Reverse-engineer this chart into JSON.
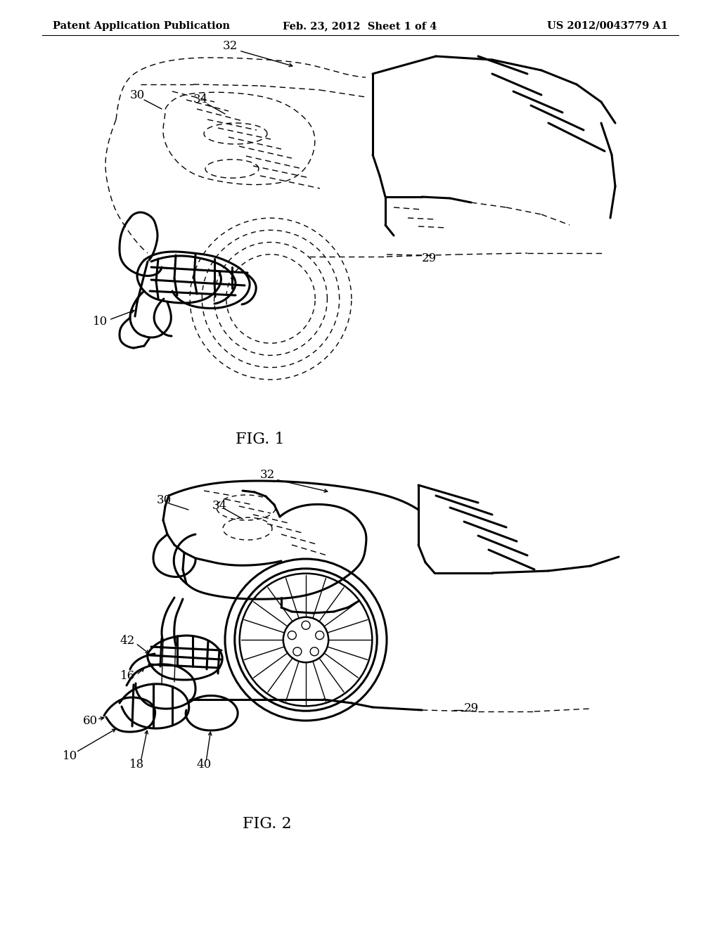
{
  "bg_color": "#ffffff",
  "header_left": "Patent Application Publication",
  "header_center": "Feb. 23, 2012  Sheet 1 of 4",
  "header_right": "US 2012/0043779 A1",
  "fig1_label": "FIG. 1",
  "fig2_label": "FIG. 2",
  "header_fontsize": 10.5,
  "fig_label_fontsize": 16,
  "ref_fontsize": 12,
  "lw_main": 1.8,
  "lw_thin": 1.0,
  "lw_bold": 2.2
}
